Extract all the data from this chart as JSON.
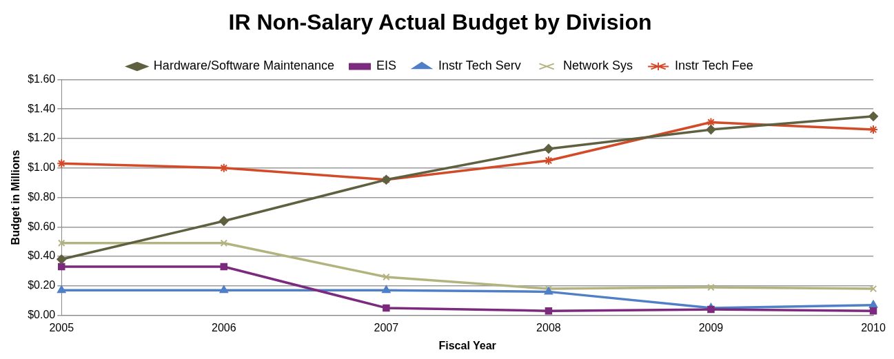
{
  "chart_data": {
    "type": "line",
    "title": "IR Non-Salary Actual Budget by Division",
    "xlabel": "Fiscal Year",
    "ylabel": "Budget in Millions",
    "categories": [
      "2005",
      "2006",
      "2007",
      "2008",
      "2009",
      "2010"
    ],
    "series": [
      {
        "name": "Hardware/Software Maintenance",
        "color": "#5f6040",
        "marker": "diamond",
        "values": [
          0.38,
          0.64,
          0.92,
          1.13,
          1.26,
          1.35
        ]
      },
      {
        "name": "EIS",
        "color": "#7b2a7e",
        "marker": "square",
        "values": [
          0.33,
          0.33,
          0.05,
          0.03,
          0.04,
          0.03
        ]
      },
      {
        "name": "Instr Tech Serv",
        "color": "#4f7fc6",
        "marker": "triangle",
        "values": [
          0.17,
          0.17,
          0.17,
          0.16,
          0.05,
          0.07
        ]
      },
      {
        "name": "Network Sys",
        "color": "#b3b380",
        "marker": "cross",
        "values": [
          0.49,
          0.49,
          0.26,
          0.18,
          0.19,
          0.18
        ]
      },
      {
        "name": "Instr Tech Fee",
        "color": "#d24a28",
        "marker": "cross",
        "values": [
          1.03,
          1.0,
          0.92,
          1.05,
          1.31,
          1.26
        ]
      }
    ],
    "ylim": [
      0,
      1.6
    ],
    "yticks": [
      {
        "value": 0,
        "label": "$0.00"
      },
      {
        "value": 0.2,
        "label": "$0.20"
      },
      {
        "value": 0.4,
        "label": "$0.40"
      },
      {
        "value": 0.6,
        "label": "$0.60"
      },
      {
        "value": 0.8,
        "label": "$0.80"
      },
      {
        "value": 1.0,
        "label": "$1.00"
      },
      {
        "value": 1.2,
        "label": "$1.20"
      },
      {
        "value": 1.4,
        "label": "$1.40"
      },
      {
        "value": 1.6,
        "label": "$1.60"
      }
    ],
    "grid": "y",
    "legend": "top",
    "line_style": "solid"
  }
}
